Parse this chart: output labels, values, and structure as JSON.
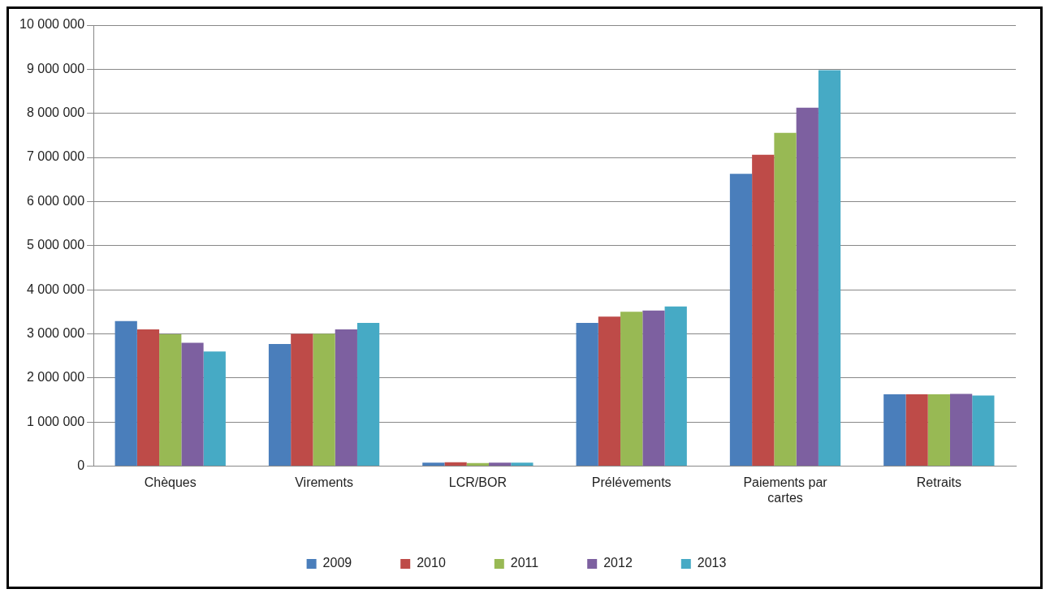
{
  "chart_data": {
    "type": "bar",
    "categories": [
      "Chèques",
      "Virements",
      "LCR/BOR",
      "Prélévements",
      "Paiements par cartes",
      "Retraits"
    ],
    "series": [
      {
        "name": "2009",
        "color": "#4a7ebb",
        "values": [
          3290000,
          2770000,
          80000,
          3250000,
          6630000,
          1630000
        ]
      },
      {
        "name": "2010",
        "color": "#be4b48",
        "values": [
          3100000,
          3000000,
          90000,
          3390000,
          7060000,
          1630000
        ]
      },
      {
        "name": "2011",
        "color": "#98b954",
        "values": [
          2990000,
          3000000,
          70000,
          3500000,
          7560000,
          1630000
        ]
      },
      {
        "name": "2012",
        "color": "#7d60a0",
        "values": [
          2800000,
          3100000,
          80000,
          3530000,
          8130000,
          1640000
        ]
      },
      {
        "name": "2013",
        "color": "#46aac5",
        "values": [
          2600000,
          3250000,
          80000,
          3620000,
          8980000,
          1600000
        ]
      }
    ],
    "ylim": [
      0,
      10000000
    ],
    "yticks": [
      0,
      {
        "value": 1000000,
        "label": "1 000 000"
      },
      {
        "value": 2000000,
        "label": "2 000 000"
      },
      {
        "value": 3000000,
        "label": "3 000 000"
      },
      {
        "value": 4000000,
        "label": "4 000 000"
      },
      {
        "value": 5000000,
        "label": "5 000 000"
      },
      {
        "value": 6000000,
        "label": "6 000 000"
      },
      {
        "value": 7000000,
        "label": "7 000 000"
      },
      {
        "value": 8000000,
        "label": "8 000 000"
      },
      {
        "value": 9000000,
        "label": "9 000 000"
      },
      {
        "value": 10000000,
        "label": "10 000 000"
      }
    ],
    "grid": "y",
    "legend": "bottom"
  }
}
